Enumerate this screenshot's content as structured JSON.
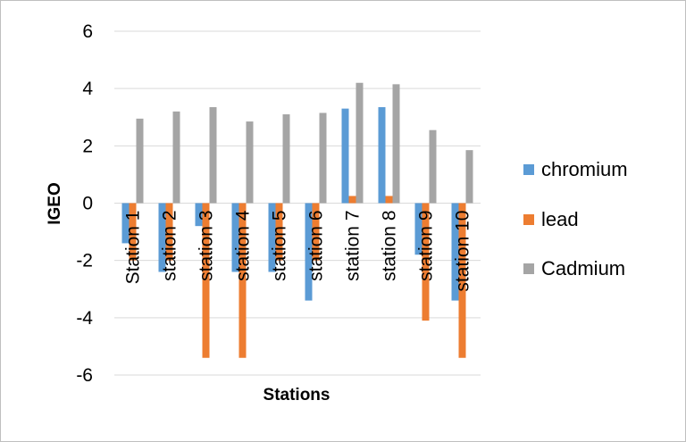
{
  "chart_data": {
    "type": "bar",
    "categories": [
      "Station 1",
      "station 2",
      "station 3",
      "station 4",
      "station 5",
      "station 6",
      "station 7",
      "station 8",
      "station 9",
      "station 10"
    ],
    "series": [
      {
        "name": "chromium",
        "color": "#5b9bd5",
        "values": [
          -1.4,
          -2.4,
          -0.8,
          -2.4,
          -2.4,
          -3.4,
          3.3,
          3.35,
          -1.8,
          -3.4
        ]
      },
      {
        "name": "lead",
        "color": "#ed7d31",
        "values": [
          -2.0,
          -2.0,
          -5.4,
          -5.4,
          -2.0,
          -2.0,
          0.25,
          0.25,
          -4.1,
          -5.4
        ]
      },
      {
        "name": "Cadmium",
        "color": "#a5a5a5",
        "values": [
          2.95,
          3.2,
          3.35,
          2.85,
          3.1,
          3.15,
          4.2,
          4.15,
          2.55,
          1.85
        ]
      }
    ],
    "xlabel": "Stations",
    "ylabel": "IGEO",
    "ylim": [
      -6,
      6
    ],
    "yticks": [
      "6",
      "4",
      "2",
      "0",
      "-2",
      "-4",
      "-6"
    ],
    "grid": true,
    "legend_position": "right"
  }
}
